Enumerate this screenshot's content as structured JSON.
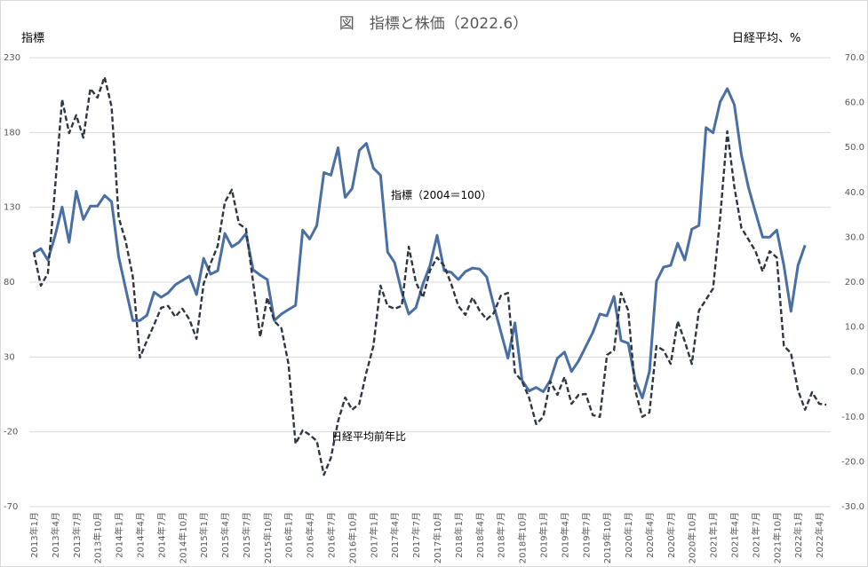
{
  "chart_data": {
    "type": "line",
    "title": "図　指標と株価（2022.6）",
    "ylabel_left": "指標",
    "ylabel_right": "日経平均、%",
    "ylim_left": [
      -70,
      230
    ],
    "ylim_right": [
      -30,
      70
    ],
    "yticks_left": [
      "230",
      "180",
      "130",
      "80",
      "30",
      "-20",
      "-70"
    ],
    "yticks_right": [
      "70.0",
      "60.0",
      "50.0",
      "40.0",
      "30.0",
      "20.0",
      "10.0",
      "0.0",
      "-10.0",
      "-20.0",
      "-30.0"
    ],
    "grid": true,
    "x_start": "2013年1月",
    "x_frequency": "monthly",
    "xticks": [
      "2013年1月",
      "2013年4月",
      "2013年7月",
      "2013年10月",
      "2014年1月",
      "2014年4月",
      "2014年7月",
      "2014年10月",
      "2015年1月",
      "2015年4月",
      "2015年7月",
      "2015年10月",
      "2016年1月",
      "2016年4月",
      "2016年7月",
      "2016年10月",
      "2017年1月",
      "2017年4月",
      "2017年7月",
      "2017年10月",
      "2018年1月",
      "2018年4月",
      "2018年7月",
      "2018年10月",
      "2019年1月",
      "2019年4月",
      "2019年7月",
      "2019年10月",
      "2020年1月",
      "2020年4月",
      "2020年7月",
      "2020年10月",
      "2021年1月",
      "2021年4月",
      "2021年7月",
      "2021年10月",
      "2022年1月",
      "2022年4月"
    ],
    "annotations": {
      "index_label": "指標（2004＝100）",
      "stock_label": "日経平均前年比"
    },
    "series": [
      {
        "name": "指標（2004＝100）",
        "axis": "left",
        "style": "solid",
        "color": "#4a6fa5",
        "values": [
          99.5,
          102.4,
          94.8,
          110.7,
          130.2,
          106.6,
          140.8,
          121.9,
          130.8,
          130.8,
          137.9,
          133.7,
          96.9,
          75.6,
          54.4,
          54.4,
          57.9,
          73.3,
          69.9,
          72.9,
          78.2,
          81.2,
          84.1,
          71.7,
          95.9,
          85.3,
          87.7,
          112.5,
          103.6,
          106.6,
          112.5,
          88.3,
          84.7,
          81.8,
          54.4,
          58.7,
          61.7,
          64.5,
          114.8,
          108.9,
          117.8,
          153.2,
          151.5,
          169.8,
          136.7,
          142.6,
          168.0,
          172.7,
          156.2,
          151.5,
          100.1,
          93.0,
          73.5,
          58.7,
          62.9,
          78.8,
          91.2,
          111.3,
          87.7,
          86.5,
          81.8,
          87.1,
          89.4,
          88.8,
          83.5,
          64.6,
          46.9,
          29.2,
          52.8,
          14.4,
          7.3,
          9.7,
          6.8,
          14.4,
          29.2,
          33.3,
          20.3,
          27.4,
          36.9,
          46.3,
          58.7,
          57.5,
          70.5,
          41.0,
          39.2,
          14.4,
          2.6,
          20.3,
          80.6,
          90.0,
          91.2,
          106.0,
          94.8,
          115.4,
          117.8,
          183.3,
          179.8,
          200.5,
          209.3,
          198.7,
          165.0,
          143.2,
          126.6,
          110.1,
          110.1,
          114.8,
          91.2,
          60.5,
          91.2,
          104.8
        ]
      },
      {
        "name": "日経平均前年比",
        "axis": "right",
        "style": "dashed",
        "color": "#2f3640",
        "values": [
          26.7,
          19.2,
          22.0,
          40.8,
          60.7,
          53.2,
          57.2,
          52.2,
          63.1,
          61.1,
          65.7,
          59.1,
          34.4,
          29.1,
          21.2,
          3.2,
          7.0,
          10.5,
          14.3,
          14.7,
          12.3,
          14.1,
          11.7,
          7.4,
          19.6,
          24.2,
          28.1,
          37.8,
          40.6,
          33.0,
          31.9,
          20.0,
          7.8,
          16.6,
          11.3,
          9.7,
          1.8,
          -16.0,
          -13.0,
          -14.0,
          -15.4,
          -22.9,
          -19.1,
          -11.0,
          -5.7,
          -8.4,
          -7.1,
          -0.1,
          5.8,
          19.2,
          14.7,
          14.1,
          14.7,
          27.9,
          20.0,
          16.6,
          22.6,
          25.5,
          23.6,
          19.6,
          14.7,
          12.7,
          16.6,
          13.7,
          11.7,
          13.1,
          17.0,
          17.6,
          -0.1,
          -2.1,
          -5.7,
          -11.6,
          -10.0,
          -2.1,
          -5.1,
          -1.1,
          -7.1,
          -5.1,
          -4.9,
          -9.6,
          -10.0,
          3.8,
          4.8,
          17.6,
          13.7,
          -4.1,
          -10.0,
          -9.0,
          5.8,
          4.8,
          1.8,
          11.3,
          6.8,
          1.8,
          13.7,
          16.1,
          18.6,
          34.4,
          53.6,
          41.3,
          32.1,
          29.5,
          26.9,
          22.4,
          26.9,
          25.5,
          5.8,
          4.2,
          -4.1,
          -8.4,
          -4.5,
          -7.1,
          -7.3
        ]
      }
    ]
  }
}
